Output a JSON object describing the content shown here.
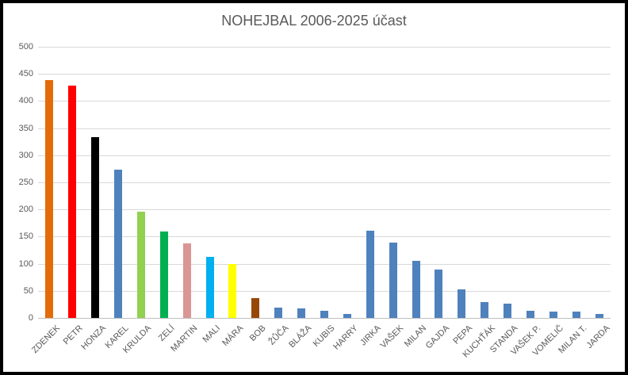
{
  "window": {
    "background": "#ffffff",
    "frame_border_color": "#000000"
  },
  "chart_data": {
    "type": "bar",
    "title": "NOHEJBAL 2006-2025 účast",
    "categories": [
      "ZDENEK",
      "PETR",
      "HONZA",
      "KAREL",
      "KRULDA",
      "ZELÍ",
      "MARTIN",
      "MALI",
      "MÁRA",
      "BOB",
      "ŽŮČA",
      "BLÁŽA",
      "KUBIS",
      "HARRY",
      "JIRKA",
      "VAŠEK",
      "MILAN",
      "GAJDA",
      "PEPA",
      "KUCHŤÁK",
      "STANDA",
      "VAŠEK P.",
      "VOMELIČ",
      "MILAN T.",
      "JARDA"
    ],
    "values": [
      438,
      428,
      333,
      273,
      196,
      159,
      138,
      113,
      100,
      37,
      19,
      18,
      13,
      7,
      161,
      139,
      106,
      89,
      52,
      29,
      26,
      13,
      11,
      11,
      8
    ],
    "bar_colors": [
      "#E36C09",
      "#FF0000",
      "#000000",
      "#4F81BD",
      "#92D050",
      "#00B050",
      "#D99694",
      "#00B0F0",
      "#FFFF00",
      "#974706",
      "#4F81BD",
      "#4F81BD",
      "#4F81BD",
      "#4F81BD",
      "#4F81BD",
      "#4F81BD",
      "#4F81BD",
      "#4F81BD",
      "#4F81BD",
      "#4F81BD",
      "#4F81BD",
      "#4F81BD",
      "#4F81BD",
      "#4F81BD",
      "#4F81BD"
    ],
    "default_bar_color": "#4F81BD",
    "xlabel": "",
    "ylabel": "",
    "ylim": [
      0,
      500
    ],
    "ytick_step": 50,
    "y_tick_labels": [
      "0",
      "50",
      "100",
      "150",
      "200",
      "250",
      "300",
      "350",
      "400",
      "450",
      "500"
    ],
    "grid": "horizontal",
    "gridline_color": "#d9d9d9",
    "axis_line_color": "#bfbfbf",
    "text_color": "#595959",
    "legend": "none"
  }
}
